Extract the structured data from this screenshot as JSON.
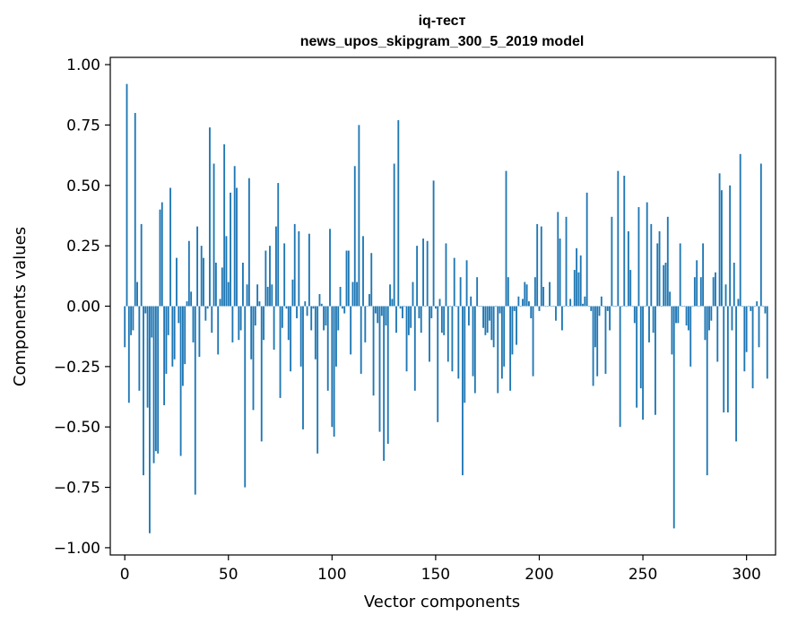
{
  "chart_data": {
    "type": "bar",
    "title_line1": "iq-тест",
    "title_line2": "news_upos_skipgram_300_5_2019 model",
    "xlabel": "Vector components",
    "ylabel": "Components values",
    "xlim": [
      -7,
      314
    ],
    "ylim": [
      -1.03,
      1.03
    ],
    "xticks": [
      0,
      50,
      100,
      150,
      200,
      250,
      300
    ],
    "yticks": [
      1.0,
      0.75,
      0.5,
      0.25,
      0.0,
      -0.25,
      -0.5,
      -0.75,
      -1.0
    ],
    "ytick_labels": [
      "1.00",
      "0.75",
      "0.50",
      "0.25",
      "0.00",
      "−0.25",
      "−0.50",
      "−0.75",
      "−1.00"
    ],
    "color": "#1f77b4",
    "values": [
      -0.17,
      0.92,
      -0.4,
      -0.12,
      -0.1,
      0.8,
      0.1,
      -0.35,
      0.34,
      -0.7,
      -0.03,
      -0.42,
      -0.94,
      -0.13,
      -0.65,
      -0.6,
      -0.61,
      0.4,
      0.43,
      -0.41,
      -0.28,
      -0.12,
      0.49,
      -0.25,
      -0.22,
      0.2,
      -0.07,
      -0.62,
      -0.33,
      -0.24,
      0.02,
      0.27,
      0.06,
      -0.15,
      -0.78,
      0.33,
      -0.21,
      0.25,
      0.2,
      -0.06,
      -0.01,
      0.74,
      -0.11,
      0.59,
      0.18,
      -0.2,
      0.03,
      0.16,
      0.67,
      0.29,
      0.1,
      0.47,
      -0.15,
      0.58,
      0.49,
      -0.14,
      -0.1,
      0.18,
      -0.75,
      0.09,
      0.53,
      -0.22,
      -0.43,
      -0.08,
      0.09,
      0.02,
      -0.56,
      -0.14,
      0.23,
      0.08,
      0.25,
      0.09,
      -0.18,
      0.33,
      0.51,
      -0.38,
      -0.09,
      0.26,
      -0.01,
      -0.14,
      -0.27,
      0.11,
      0.34,
      -0.05,
      0.31,
      -0.25,
      -0.51,
      0.02,
      -0.04,
      0.3,
      -0.1,
      -0.01,
      -0.22,
      -0.61,
      0.05,
      0.01,
      -0.1,
      -0.08,
      -0.35,
      0.32,
      -0.5,
      -0.54,
      -0.25,
      -0.1,
      0.08,
      -0.01,
      -0.03,
      0.23,
      0.23,
      -0.2,
      0.1,
      0.58,
      0.1,
      0.75,
      -0.28,
      0.29,
      -0.15,
      0.0,
      0.05,
      0.22,
      -0.37,
      -0.03,
      -0.07,
      -0.52,
      -0.04,
      -0.64,
      -0.08,
      -0.57,
      0.09,
      0.03,
      0.59,
      -0.11,
      0.77,
      -0.01,
      -0.05,
      0.0,
      -0.27,
      -0.12,
      -0.09,
      0.1,
      -0.35,
      0.25,
      -0.05,
      -0.11,
      0.28,
      0.0,
      0.27,
      -0.23,
      -0.05,
      0.52,
      -0.01,
      -0.48,
      0.03,
      -0.11,
      -0.12,
      0.26,
      -0.23,
      0.0,
      -0.27,
      0.2,
      0.0,
      -0.3,
      0.12,
      -0.7,
      -0.4,
      0.19,
      -0.08,
      0.04,
      -0.29,
      -0.36,
      0.12,
      0.0,
      0.0,
      -0.09,
      -0.12,
      -0.11,
      -0.06,
      -0.14,
      -0.17,
      0.0,
      -0.36,
      -0.03,
      -0.3,
      -0.25,
      0.56,
      0.12,
      -0.35,
      -0.2,
      -0.02,
      -0.16,
      0.04,
      0.0,
      0.03,
      0.1,
      0.09,
      0.02,
      -0.05,
      -0.29,
      0.12,
      0.34,
      -0.02,
      0.33,
      0.08,
      0.0,
      0.0,
      0.1,
      0.0,
      0.0,
      -0.06,
      0.39,
      0.28,
      -0.1,
      0.0,
      0.37,
      0.0,
      0.03,
      0.0,
      0.15,
      0.24,
      0.14,
      0.21,
      0.01,
      0.04,
      0.47,
      0.0,
      -0.02,
      -0.33,
      -0.17,
      -0.29,
      -0.04,
      0.04,
      0.0,
      -0.28,
      -0.02,
      -0.1,
      0.37,
      0.0,
      0.0,
      0.56,
      -0.5,
      0.0,
      0.54,
      0.0,
      0.31,
      0.15,
      0.0,
      -0.07,
      -0.42,
      0.41,
      -0.34,
      -0.47,
      0.0,
      0.43,
      -0.15,
      0.34,
      -0.11,
      -0.45,
      0.26,
      0.31,
      0.0,
      0.17,
      0.18,
      0.37,
      0.06,
      -0.2,
      -0.92,
      -0.07,
      -0.07,
      0.26,
      0.0,
      0.0,
      -0.08,
      -0.1,
      -0.25,
      0.0,
      0.12,
      0.19,
      0.0,
      0.12,
      0.26,
      -0.14,
      -0.7,
      -0.1,
      -0.06,
      0.12,
      0.14,
      -0.23,
      0.55,
      0.48,
      -0.44,
      0.09,
      -0.44,
      0.5,
      -0.1,
      0.18,
      -0.56,
      0.03,
      0.63,
      0.0,
      -0.27,
      -0.19,
      0.0,
      -0.02,
      -0.34,
      0.0,
      0.02,
      -0.17,
      0.59,
      0.0,
      -0.03,
      -0.3
    ]
  }
}
